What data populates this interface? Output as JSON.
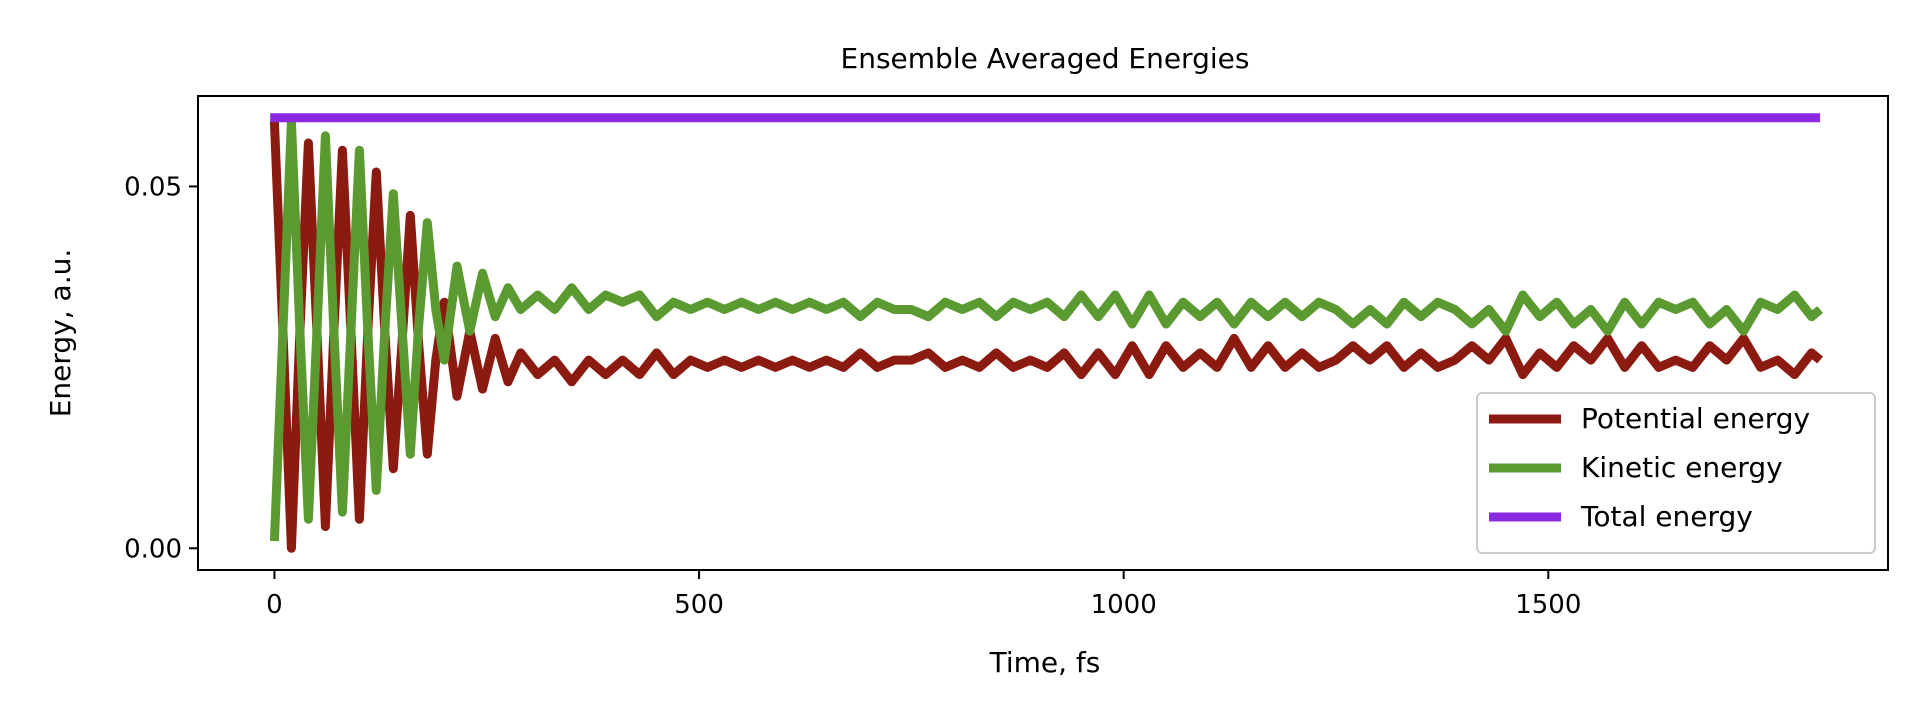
{
  "chart_data": {
    "type": "line",
    "title": "Ensemble Averaged Energies",
    "xlabel": "Time, fs",
    "ylabel": "Energy, a.u.",
    "xlim": [
      -90,
      1900
    ],
    "ylim": [
      -0.003,
      0.0625
    ],
    "xticks": [
      0,
      500,
      1000,
      1500
    ],
    "yticks": [
      0.0,
      0.05
    ],
    "xtick_labels": [
      "0",
      "500",
      "1000",
      "1500"
    ],
    "ytick_labels": [
      "0.00",
      "0.05"
    ],
    "grid": false,
    "legend_position": "lower right",
    "series": [
      {
        "name": "Potential energy",
        "color": "#8b1a10",
        "x": [
          0,
          10,
          20,
          30,
          40,
          50,
          60,
          70,
          80,
          90,
          100,
          110,
          120,
          130,
          140,
          150,
          160,
          170,
          180,
          190,
          200,
          215,
          230,
          245,
          260,
          275,
          290,
          310,
          330,
          350,
          370,
          390,
          410,
          430,
          450,
          470,
          490,
          510,
          530,
          550,
          570,
          590,
          610,
          630,
          650,
          670,
          690,
          710,
          730,
          750,
          770,
          790,
          810,
          830,
          850,
          870,
          890,
          910,
          930,
          950,
          970,
          990,
          1010,
          1030,
          1050,
          1070,
          1090,
          1110,
          1130,
          1150,
          1170,
          1190,
          1210,
          1230,
          1250,
          1270,
          1290,
          1310,
          1330,
          1350,
          1370,
          1390,
          1410,
          1430,
          1450,
          1470,
          1490,
          1510,
          1530,
          1550,
          1570,
          1590,
          1610,
          1630,
          1650,
          1670,
          1690,
          1710,
          1730,
          1750,
          1770,
          1790,
          1810,
          1820
        ],
        "y": [
          0.059,
          0.03,
          0.0,
          0.03,
          0.056,
          0.03,
          0.003,
          0.03,
          0.055,
          0.03,
          0.004,
          0.03,
          0.052,
          0.03,
          0.011,
          0.028,
          0.046,
          0.028,
          0.013,
          0.026,
          0.034,
          0.021,
          0.03,
          0.022,
          0.029,
          0.023,
          0.027,
          0.024,
          0.026,
          0.023,
          0.026,
          0.024,
          0.026,
          0.024,
          0.027,
          0.024,
          0.026,
          0.025,
          0.026,
          0.025,
          0.026,
          0.025,
          0.026,
          0.025,
          0.026,
          0.025,
          0.027,
          0.025,
          0.026,
          0.026,
          0.027,
          0.025,
          0.026,
          0.025,
          0.027,
          0.025,
          0.026,
          0.025,
          0.027,
          0.024,
          0.027,
          0.024,
          0.028,
          0.024,
          0.028,
          0.025,
          0.027,
          0.025,
          0.029,
          0.025,
          0.028,
          0.025,
          0.027,
          0.025,
          0.026,
          0.028,
          0.026,
          0.028,
          0.025,
          0.027,
          0.025,
          0.026,
          0.028,
          0.026,
          0.029,
          0.024,
          0.027,
          0.025,
          0.028,
          0.026,
          0.029,
          0.025,
          0.028,
          0.025,
          0.026,
          0.025,
          0.028,
          0.026,
          0.029,
          0.025,
          0.026,
          0.024,
          0.027,
          0.026
        ]
      },
      {
        "name": "Kinetic energy",
        "color": "#5a9a30",
        "x": [
          0,
          10,
          20,
          30,
          40,
          50,
          60,
          70,
          80,
          90,
          100,
          110,
          120,
          130,
          140,
          150,
          160,
          170,
          180,
          190,
          200,
          215,
          230,
          245,
          260,
          275,
          290,
          310,
          330,
          350,
          370,
          390,
          410,
          430,
          450,
          470,
          490,
          510,
          530,
          550,
          570,
          590,
          610,
          630,
          650,
          670,
          690,
          710,
          730,
          750,
          770,
          790,
          810,
          830,
          850,
          870,
          890,
          910,
          930,
          950,
          970,
          990,
          1010,
          1030,
          1050,
          1070,
          1090,
          1110,
          1130,
          1150,
          1170,
          1190,
          1210,
          1230,
          1250,
          1270,
          1290,
          1310,
          1330,
          1350,
          1370,
          1390,
          1410,
          1430,
          1450,
          1470,
          1490,
          1510,
          1530,
          1550,
          1570,
          1590,
          1610,
          1630,
          1650,
          1670,
          1690,
          1710,
          1730,
          1750,
          1770,
          1790,
          1810,
          1820
        ],
        "y": [
          0.001,
          0.03,
          0.059,
          0.03,
          0.004,
          0.03,
          0.057,
          0.03,
          0.005,
          0.03,
          0.055,
          0.03,
          0.008,
          0.03,
          0.049,
          0.031,
          0.013,
          0.031,
          0.045,
          0.033,
          0.026,
          0.039,
          0.03,
          0.038,
          0.032,
          0.036,
          0.033,
          0.035,
          0.033,
          0.036,
          0.033,
          0.035,
          0.034,
          0.035,
          0.032,
          0.034,
          0.033,
          0.034,
          0.033,
          0.034,
          0.033,
          0.034,
          0.033,
          0.034,
          0.033,
          0.034,
          0.032,
          0.034,
          0.033,
          0.033,
          0.032,
          0.034,
          0.033,
          0.034,
          0.032,
          0.034,
          0.033,
          0.034,
          0.032,
          0.035,
          0.032,
          0.035,
          0.031,
          0.035,
          0.031,
          0.034,
          0.032,
          0.034,
          0.031,
          0.034,
          0.032,
          0.034,
          0.032,
          0.034,
          0.033,
          0.031,
          0.033,
          0.031,
          0.034,
          0.032,
          0.034,
          0.033,
          0.031,
          0.033,
          0.03,
          0.035,
          0.032,
          0.034,
          0.031,
          0.033,
          0.03,
          0.034,
          0.031,
          0.034,
          0.033,
          0.034,
          0.031,
          0.033,
          0.03,
          0.034,
          0.033,
          0.035,
          0.032,
          0.033
        ]
      },
      {
        "name": "Total energy",
        "color": "#8a2be2",
        "x": [
          -5,
          1820
        ],
        "y": [
          0.0595,
          0.0595
        ]
      }
    ]
  }
}
